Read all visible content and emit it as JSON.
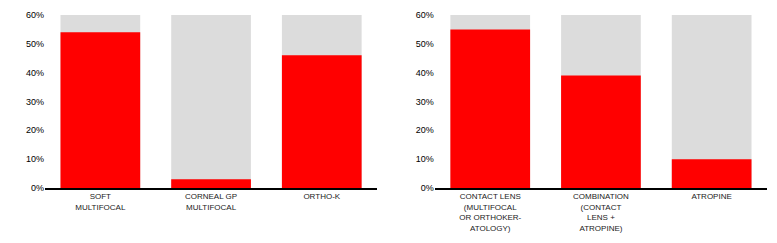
{
  "chart_data": [
    {
      "type": "bar",
      "categories": [
        "SOFT\nMULTIFOCAL",
        "CORNEAL GP\nMULTIFOCAL",
        "ORTHO-K"
      ],
      "values": [
        54,
        3,
        46
      ],
      "background_value": 60,
      "background_color": "#DCDCDC",
      "color": "#FF0000",
      "ylim": [
        0,
        60
      ],
      "yticks": [
        {
          "value": 0,
          "label": "0%"
        },
        {
          "value": 10,
          "label": "10%"
        },
        {
          "value": 20,
          "label": "20%"
        },
        {
          "value": 30,
          "label": "30%"
        },
        {
          "value": 40,
          "label": "40%"
        },
        {
          "value": 50,
          "label": "50%"
        },
        {
          "value": 60,
          "label": "60%"
        }
      ],
      "grid": false
    },
    {
      "type": "bar",
      "categories": [
        "CONTACT LENS\n(MULTIFOCAL\nOR ORTHOKER-\nATOLOGY)",
        "COMBINATION\n(CONTACT\nLENS +\nATROPINE)",
        "ATROPINE"
      ],
      "values": [
        55,
        39,
        10
      ],
      "background_value": 60,
      "background_color": "#DCDCDC",
      "color": "#FF0000",
      "ylim": [
        0,
        60
      ],
      "yticks": [
        {
          "value": 0,
          "label": "0%"
        },
        {
          "value": 10,
          "label": "10%"
        },
        {
          "value": 20,
          "label": "20%"
        },
        {
          "value": 30,
          "label": "30%"
        },
        {
          "value": 40,
          "label": "40%"
        },
        {
          "value": 50,
          "label": "50%"
        },
        {
          "value": 60,
          "label": "60%"
        }
      ],
      "grid": false
    }
  ]
}
